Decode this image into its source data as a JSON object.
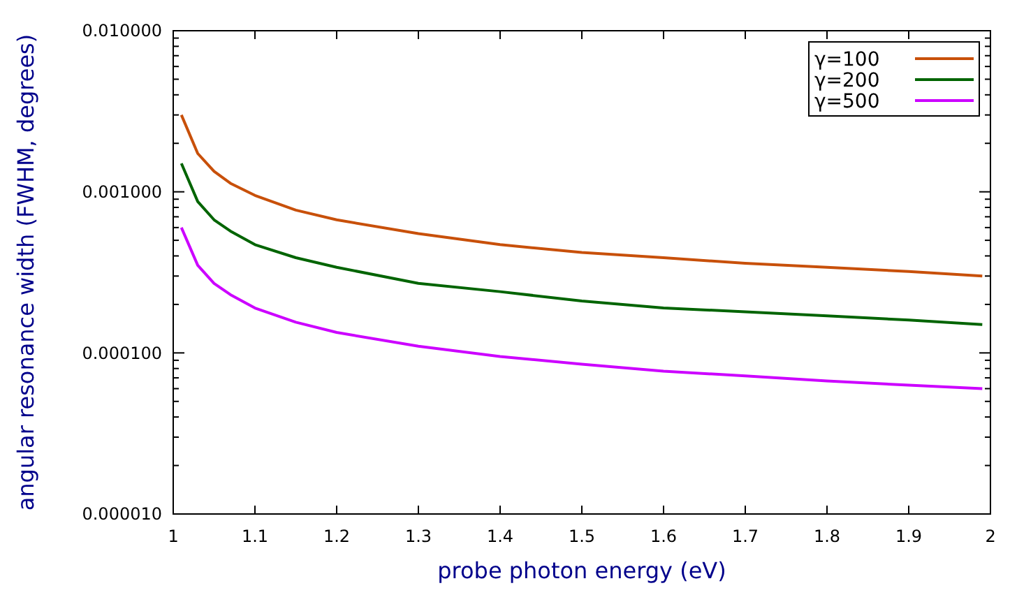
{
  "chart_data": {
    "type": "line",
    "xlabel": "probe photon energy (eV)",
    "ylabel": "angular resonance width (FWHM, degrees)",
    "x": [
      1.01,
      1.03,
      1.05,
      1.07,
      1.1,
      1.15,
      1.2,
      1.3,
      1.4,
      1.5,
      1.6,
      1.7,
      1.8,
      1.9,
      1.99
    ],
    "series": [
      {
        "name": "γ=100",
        "color": "#c8500a",
        "values": [
          0.003,
          0.00173,
          0.00134,
          0.00113,
          0.00095,
          0.00077,
          0.00067,
          0.00055,
          0.00047,
          0.00042,
          0.00039,
          0.00036,
          0.00034,
          0.00032,
          0.0003
        ]
      },
      {
        "name": "γ=200",
        "color": "#006400",
        "values": [
          0.0015,
          0.00087,
          0.00067,
          0.00057,
          0.00047,
          0.00039,
          0.00034,
          0.00027,
          0.00024,
          0.00021,
          0.00019,
          0.00018,
          0.00017,
          0.00016,
          0.00015
        ]
      },
      {
        "name": "γ=500",
        "color": "#cc00ff",
        "values": [
          0.0006,
          0.00035,
          0.00027,
          0.00023,
          0.00019,
          0.000155,
          0.000134,
          0.00011,
          9.5e-05,
          8.5e-05,
          7.7e-05,
          7.2e-05,
          6.7e-05,
          6.3e-05,
          6e-05
        ]
      }
    ],
    "xlim": [
      1,
      2
    ],
    "xticks": [
      1,
      1.1,
      1.2,
      1.3,
      1.4,
      1.5,
      1.6,
      1.7,
      1.8,
      1.9,
      2
    ],
    "ylim": [
      1e-05,
      0.01
    ],
    "yticks": [
      {
        "value": 1e-05,
        "label": "0.000010"
      },
      {
        "value": 0.0001,
        "label": "0.000100"
      },
      {
        "value": 0.001,
        "label": "0.001000"
      },
      {
        "value": 0.01,
        "label": "0.010000"
      }
    ],
    "log": "y",
    "grid": false,
    "legend": "top right",
    "marker": "none",
    "line_style": "solid"
  }
}
